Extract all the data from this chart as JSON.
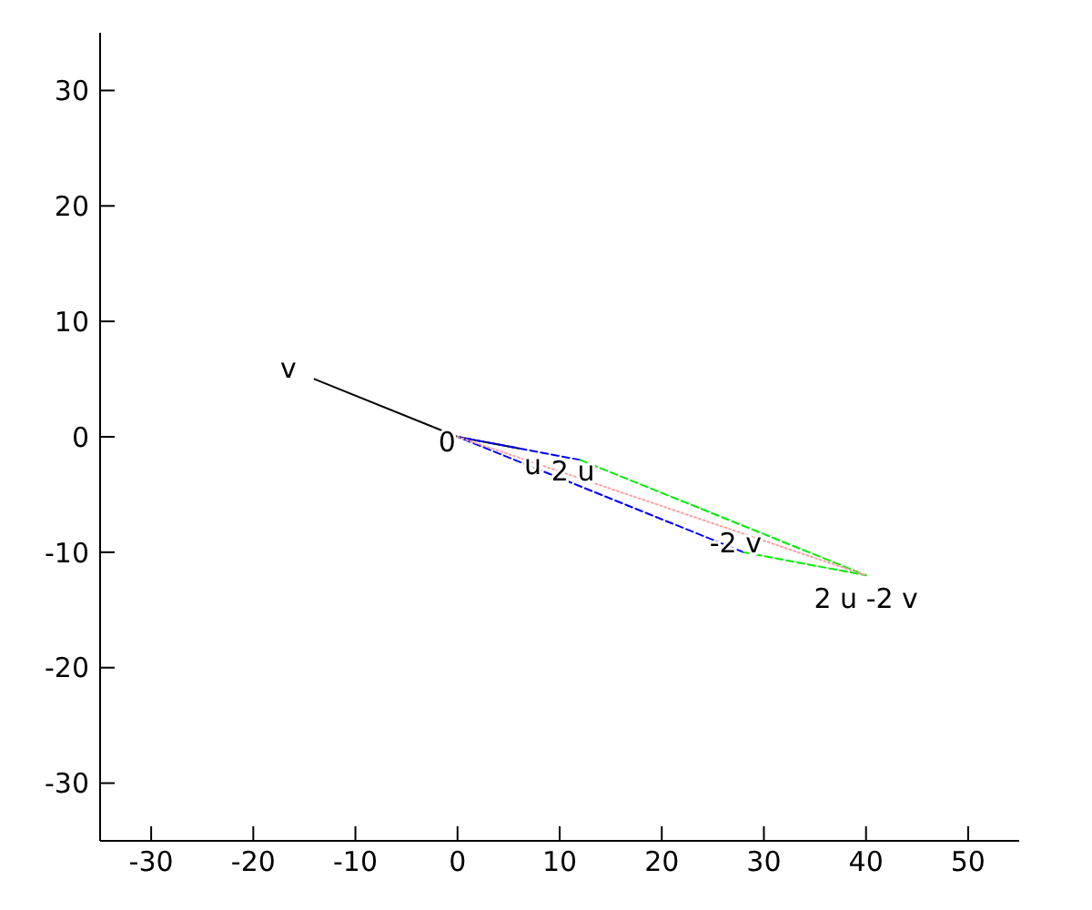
{
  "chart_data": {
    "type": "line",
    "xlim": [
      -35,
      55
    ],
    "ylim": [
      -35,
      35
    ],
    "xticks": [
      -30,
      -20,
      -10,
      0,
      10,
      20,
      30,
      40,
      50
    ],
    "yticks": [
      -30,
      -20,
      -10,
      0,
      10,
      20,
      30
    ],
    "grid": false,
    "legend": false,
    "marker": "none",
    "series": [
      {
        "color": "#000000",
        "line_style": "solid",
        "x": [
          6,
          0,
          -14
        ],
        "values": [
          -1,
          0,
          5
        ]
      },
      {
        "color": "#0000ff",
        "line_style": "dashed",
        "x": [
          12,
          0,
          28
        ],
        "values": [
          -2,
          0,
          -10
        ]
      },
      {
        "color": "#00ee00",
        "line_style": "dashed",
        "x": [
          12,
          40,
          28
        ],
        "values": [
          -2,
          -12,
          -10
        ]
      },
      {
        "color": "#ffa0a0",
        "line_style": "dotted",
        "x": [
          0,
          40
        ],
        "values": [
          0,
          -12
        ]
      }
    ],
    "annotations": [
      {
        "text": "v",
        "x": -14,
        "y": 5
      },
      {
        "text": "0",
        "x": 0,
        "y": 0
      },
      {
        "text": "u",
        "x": 6,
        "y": -1
      },
      {
        "text": "2 u",
        "x": 12,
        "y": -2
      },
      {
        "text": "-2 v",
        "x": 28,
        "y": -10
      },
      {
        "text": "2 u -2 v",
        "x": 40,
        "y": -12
      }
    ]
  }
}
